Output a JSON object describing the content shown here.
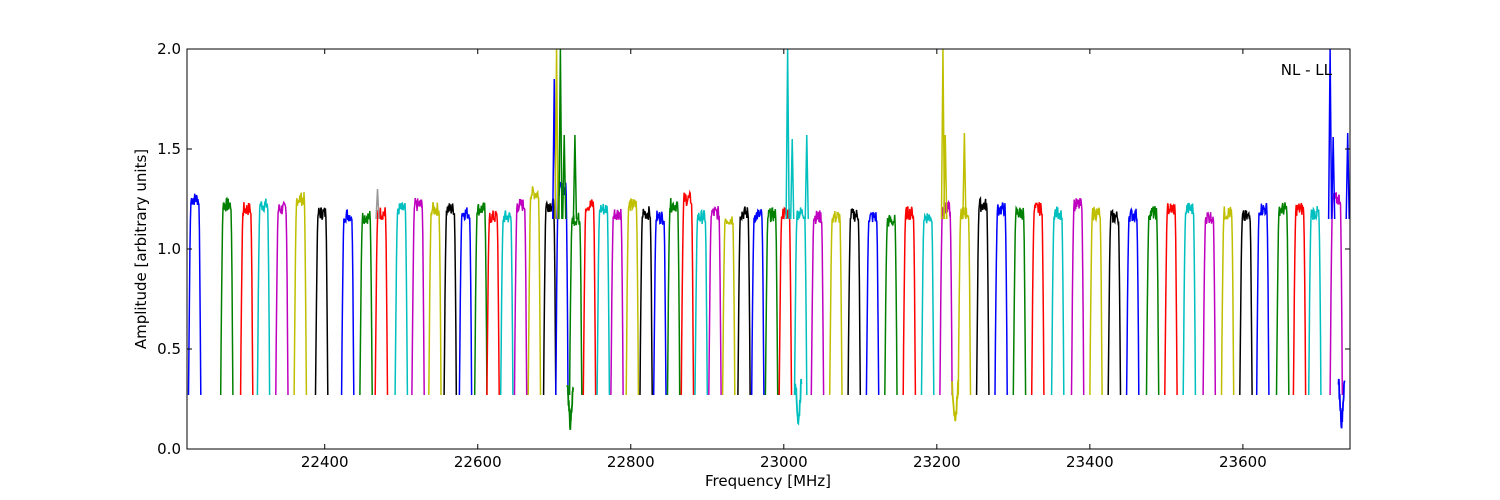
{
  "chart_data": {
    "type": "line",
    "title": "",
    "annotation": "NL - LL",
    "annotation_position": "top-right",
    "xlabel": "Frequency [MHz]",
    "ylabel": "Amplitude [arbitrary units]",
    "xlim": [
      22220,
      23740
    ],
    "ylim": [
      0.0,
      2.0
    ],
    "x_ticks": [
      22400,
      22600,
      22800,
      23000,
      23200,
      23400,
      23600
    ],
    "x_tick_labels": [
      "22400",
      "22600",
      "22800",
      "23000",
      "23200",
      "23400",
      "23600"
    ],
    "y_ticks": [
      0.0,
      0.5,
      1.0,
      1.5,
      2.0
    ],
    "y_tick_labels": [
      "0.0",
      "0.5",
      "1.0",
      "1.5",
      "2.0"
    ],
    "grid": false,
    "legend": false,
    "colors": [
      "#0000ff",
      "#008000",
      "#ff0000",
      "#00bfbf",
      "#bf00bf",
      "#bfbf00",
      "#000000"
    ],
    "band_width_mhz": 16,
    "band_starts": [
      22222,
      22264,
      22290,
      22312,
      22336,
      22360,
      22388,
      22422,
      22446,
      22466,
      22492,
      22514,
      22536,
      22556,
      22576,
      22596,
      22612,
      22630,
      22648,
      22666,
      22686,
      22702,
      22720,
      22738,
      22756,
      22774,
      22794,
      22812,
      22830,
      22848,
      22866,
      22884,
      22902,
      22920,
      22940,
      22958,
      22976,
      22994,
      23014,
      23036,
      23060,
      23084,
      23108,
      23132,
      23156,
      23180,
      23204,
      23228,
      23252,
      23276,
      23300,
      23324,
      23350,
      23376,
      23400,
      23424,
      23448,
      23474,
      23498,
      23522,
      23548,
      23572,
      23596,
      23618,
      23644,
      23666,
      23686,
      23714
    ],
    "band_levels": [
      1.25,
      1.22,
      1.2,
      1.22,
      1.2,
      1.25,
      1.18,
      1.17,
      1.16,
      1.18,
      1.2,
      1.22,
      1.2,
      1.2,
      1.18,
      1.2,
      1.16,
      1.16,
      1.22,
      1.28,
      1.22,
      1.3,
      1.15,
      1.22,
      1.2,
      1.18,
      1.22,
      1.18,
      1.16,
      1.22,
      1.25,
      1.16,
      1.18,
      1.15,
      1.18,
      1.17,
      1.17,
      1.18,
      1.18,
      1.16,
      1.16,
      1.17,
      1.16,
      1.14,
      1.18,
      1.16,
      1.2,
      1.18,
      1.22,
      1.2,
      1.18,
      1.2,
      1.18,
      1.22,
      1.18,
      1.16,
      1.17,
      1.18,
      1.2,
      1.2,
      1.16,
      1.18,
      1.16,
      1.2,
      1.2,
      1.2,
      1.18,
      1.25
    ],
    "band_minimum": 0.27,
    "spikes": [
      {
        "x": 22469,
        "y": 1.3,
        "color": "#999999"
      },
      {
        "x": 22700,
        "y": 1.85,
        "color": "#0000ff"
      },
      {
        "x": 22703,
        "y": 2.0,
        "color": "#bfbf00"
      },
      {
        "x": 22708,
        "y": 2.0,
        "color": "#008000"
      },
      {
        "x": 22713,
        "y": 1.57,
        "color": "#008000"
      },
      {
        "x": 22727,
        "y": 1.57,
        "color": "#008000"
      },
      {
        "x": 23005,
        "y": 2.0,
        "color": "#00bfbf"
      },
      {
        "x": 23011,
        "y": 1.55,
        "color": "#00bfbf"
      },
      {
        "x": 23030,
        "y": 1.57,
        "color": "#00bfbf"
      },
      {
        "x": 23208,
        "y": 2.0,
        "color": "#bfbf00"
      },
      {
        "x": 23211,
        "y": 1.57,
        "color": "#bfbf00"
      },
      {
        "x": 23236,
        "y": 1.58,
        "color": "#bfbf00"
      },
      {
        "x": 23714,
        "y": 2.0,
        "color": "#0000ff"
      },
      {
        "x": 23718,
        "y": 1.56,
        "color": "#0000ff"
      },
      {
        "x": 23737,
        "y": 1.58,
        "color": "#0000ff"
      }
    ],
    "dips": [
      {
        "x": 22721,
        "y": 0.11,
        "color": "#008000"
      },
      {
        "x": 23019,
        "y": 0.12,
        "color": "#00bfbf"
      },
      {
        "x": 23224,
        "y": 0.11,
        "color": "#bfbf00"
      },
      {
        "x": 23729,
        "y": 0.12,
        "color": "#0000ff"
      }
    ]
  }
}
